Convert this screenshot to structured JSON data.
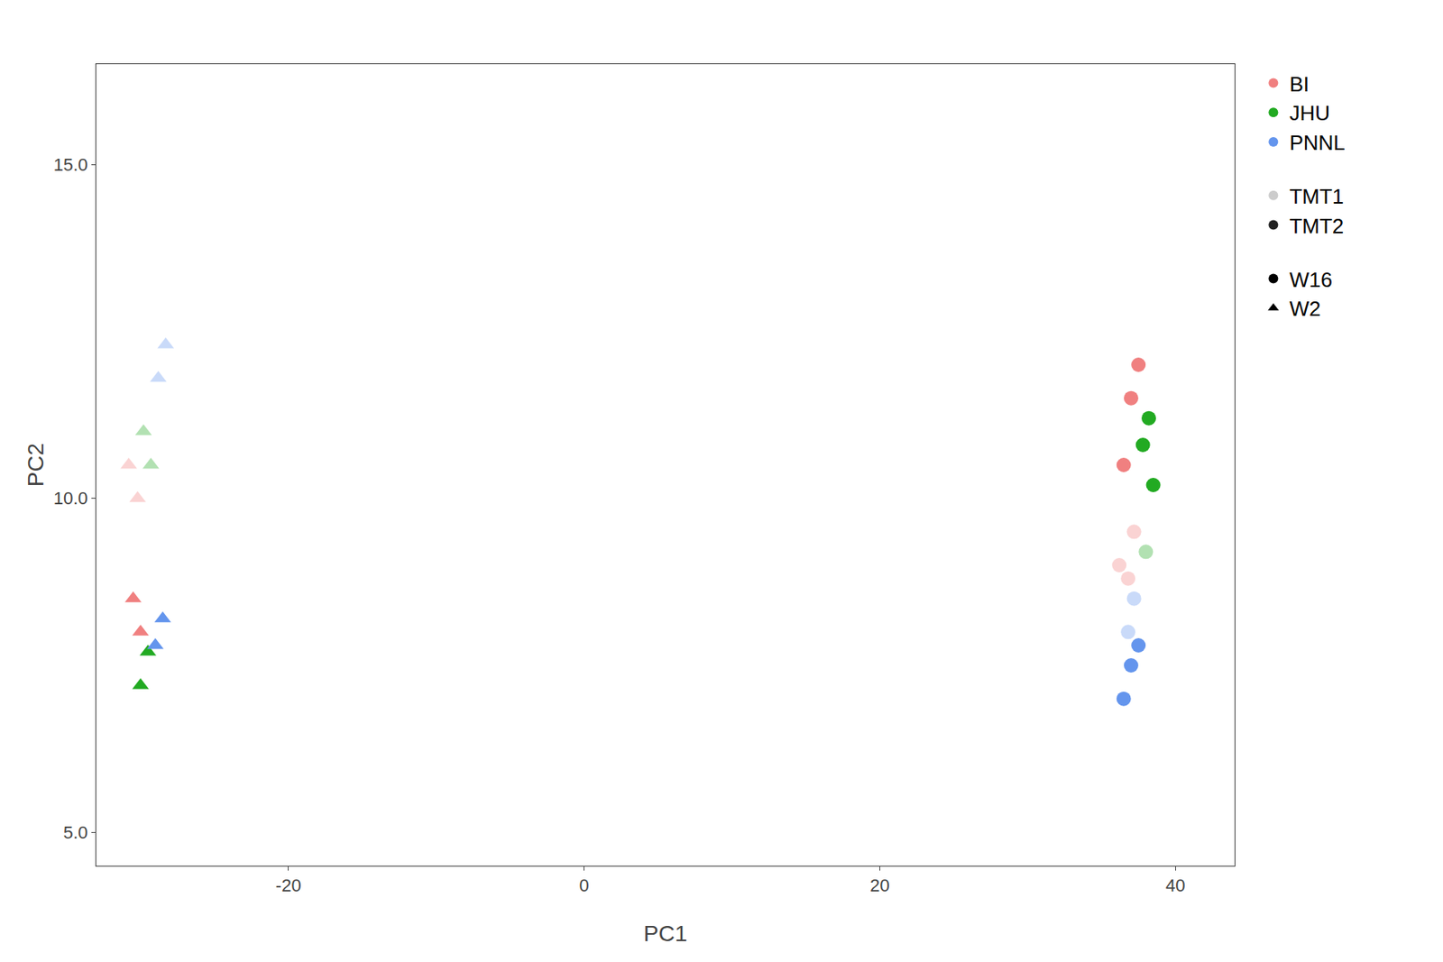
{
  "chart_data": {
    "type": "scatter",
    "xlabel": "PC1",
    "ylabel": "PC2",
    "xlim": [
      -33,
      44
    ],
    "ylim": [
      4.5,
      16.5
    ],
    "xticks": [
      -20,
      0,
      20,
      40
    ],
    "yticks": [
      {
        "value": 5.0,
        "label": "5.0"
      },
      {
        "value": 10.0,
        "label": "10.0"
      },
      {
        "value": 15.0,
        "label": "15.0"
      }
    ],
    "grid": false,
    "legend": "right",
    "series": [
      {
        "name": "BI",
        "color": "#F08080",
        "x": [
          -30.5,
          -30.0,
          -30.8,
          -30.2,
          37.0,
          36.5,
          37.5,
          37.2,
          36.8,
          36.2
        ],
        "values": [
          8.5,
          8.0,
          10.5,
          10.0,
          11.5,
          10.5,
          12.0,
          9.5,
          8.8,
          9.0
        ],
        "tmt": [
          "TMT2",
          "TMT2",
          "TMT1",
          "TMT1",
          "TMT2",
          "TMT2",
          "TMT2",
          "TMT1",
          "TMT1",
          "TMT1"
        ],
        "week": [
          "W2",
          "W2",
          "W2",
          "W2",
          "W16",
          "W16",
          "W16",
          "W16",
          "W16",
          "W16"
        ]
      },
      {
        "name": "JHU",
        "color": "#22AA22",
        "x": [
          -30.0,
          -29.5,
          -29.8,
          -29.3,
          37.8,
          38.2,
          38.5,
          38.0
        ],
        "values": [
          7.2,
          7.7,
          11.0,
          10.5,
          10.8,
          11.2,
          10.2,
          9.2
        ],
        "tmt": [
          "TMT2",
          "TMT2",
          "TMT1",
          "TMT1",
          "TMT2",
          "TMT2",
          "TMT2",
          "TMT1"
        ],
        "week": [
          "W2",
          "W2",
          "W2",
          "W2",
          "W16",
          "W16",
          "W16",
          "W16"
        ]
      },
      {
        "name": "PNNL",
        "color": "#6495ED",
        "x": [
          -29.0,
          -28.5,
          -28.8,
          -28.3,
          37.0,
          36.5,
          37.5,
          37.2,
          36.8
        ],
        "values": [
          7.8,
          8.2,
          11.8,
          12.3,
          7.5,
          7.0,
          7.8,
          8.5,
          8.0
        ],
        "tmt": [
          "TMT2",
          "TMT2",
          "TMT1",
          "TMT1",
          "TMT2",
          "TMT2",
          "TMT2",
          "TMT1",
          "TMT1"
        ],
        "week": [
          "W2",
          "W2",
          "W2",
          "W2",
          "W16",
          "W16",
          "W16",
          "W16",
          "W16"
        ]
      }
    ],
    "tmt_levels": [
      {
        "name": "TMT1",
        "color": "#cccccc"
      },
      {
        "name": "TMT2",
        "color": "#222222"
      }
    ],
    "week_levels": [
      {
        "name": "W16",
        "marker": "circle",
        "color": "black"
      },
      {
        "name": "W2",
        "marker": "triangle-up",
        "color": "black"
      }
    ]
  }
}
